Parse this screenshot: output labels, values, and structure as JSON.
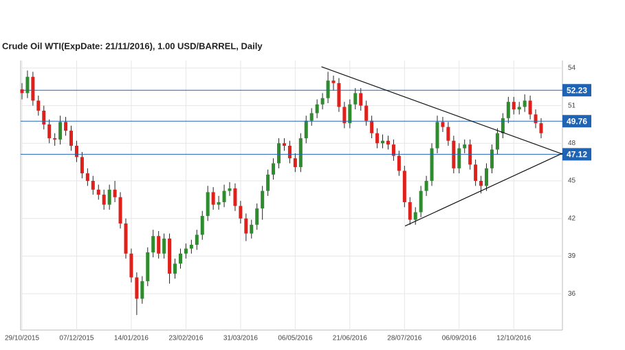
{
  "chart_data": {
    "type": "candlestick",
    "title": "Crude Oil WTI(ExpDate: 21/11/2016), 1.00 USD/BARREL, Daily",
    "categories": [
      "29/10/2015",
      null,
      null,
      null,
      null,
      null,
      null,
      null,
      null,
      null,
      "07/12/2015",
      null,
      null,
      null,
      null,
      null,
      null,
      null,
      null,
      null,
      "14/01/2016",
      null,
      null,
      null,
      null,
      null,
      null,
      null,
      null,
      null,
      "23/02/2016",
      null,
      null,
      null,
      null,
      null,
      null,
      null,
      null,
      null,
      "31/03/2016",
      null,
      null,
      null,
      null,
      null,
      null,
      null,
      null,
      null,
      "06/05/2016",
      null,
      null,
      null,
      null,
      null,
      null,
      null,
      null,
      null,
      "21/06/2016",
      null,
      null,
      null,
      null,
      null,
      null,
      null,
      null,
      null,
      "28/07/2016",
      null,
      null,
      null,
      null,
      null,
      null,
      null,
      null,
      null,
      "06/09/2016",
      null,
      null,
      null,
      null,
      null,
      null,
      null,
      null,
      null,
      "12/10/2016",
      null,
      null,
      null,
      null,
      null
    ],
    "open": [
      52.3,
      52.0,
      53.3,
      51.4,
      50.6,
      49.5,
      48.4,
      48.3,
      49.7,
      49.0,
      47.8,
      46.9,
      45.6,
      45.0,
      44.3,
      43.9,
      43.1,
      44.3,
      43.7,
      41.6,
      39.2,
      37.3,
      35.6,
      37.0,
      39.3,
      40.6,
      39.2,
      40.4,
      37.6,
      38.4,
      39.2,
      39.6,
      39.9,
      40.7,
      42.2,
      44.1,
      43.1,
      43.3,
      44.2,
      44.4,
      43.0,
      42.0,
      40.8,
      41.5,
      42.8,
      44.2,
      45.5,
      46.4,
      48.0,
      47.8,
      46.8,
      46.1,
      48.4,
      49.8,
      50.4,
      51.1,
      51.6,
      53.0,
      52.8,
      50.9,
      49.6,
      51.1,
      52.0,
      51.0,
      49.8,
      48.8,
      48.0,
      48.2,
      47.9,
      47.0,
      45.8,
      43.3,
      41.9,
      42.5,
      44.2,
      45.0,
      47.6,
      49.7,
      49.3,
      48.2,
      46.0,
      47.6,
      47.9,
      46.3,
      45.0,
      44.6,
      46.0,
      47.5,
      48.8,
      50.0,
      51.3,
      50.7,
      50.9,
      51.4,
      50.3,
      49.6
    ],
    "high": [
      52.8,
      53.8,
      53.7,
      51.8,
      51.0,
      49.9,
      48.8,
      50.2,
      50.1,
      49.4,
      48.2,
      47.3,
      46.0,
      45.4,
      44.7,
      44.3,
      44.7,
      45.0,
      44.1,
      42.0,
      39.6,
      37.7,
      37.4,
      39.7,
      41.1,
      41.0,
      40.8,
      40.8,
      38.8,
      39.6,
      40.0,
      40.3,
      41.1,
      42.6,
      44.6,
      44.5,
      43.8,
      44.7,
      44.9,
      44.8,
      43.4,
      42.4,
      41.9,
      43.2,
      44.6,
      45.9,
      46.8,
      48.4,
      48.4,
      48.2,
      47.2,
      48.8,
      50.2,
      50.8,
      51.5,
      52.0,
      53.7,
      53.4,
      53.2,
      51.3,
      51.5,
      52.4,
      52.4,
      51.4,
      50.2,
      49.2,
      48.7,
      48.6,
      48.3,
      47.4,
      46.2,
      43.7,
      42.9,
      44.6,
      45.4,
      48.0,
      50.2,
      50.1,
      49.7,
      48.6,
      48.0,
      48.3,
      48.3,
      46.7,
      45.4,
      46.4,
      47.9,
      49.2,
      50.4,
      51.7,
      51.7,
      51.3,
      51.9,
      51.8,
      50.7,
      50.0
    ],
    "low": [
      51.5,
      51.6,
      51.0,
      50.2,
      49.1,
      48.0,
      47.8,
      47.9,
      48.6,
      47.4,
      46.5,
      45.2,
      44.6,
      43.9,
      43.5,
      42.7,
      42.7,
      43.3,
      41.2,
      38.8,
      36.9,
      34.3,
      35.2,
      36.6,
      38.9,
      38.8,
      38.8,
      36.8,
      37.2,
      38.0,
      38.8,
      39.2,
      39.5,
      40.3,
      41.8,
      42.7,
      42.7,
      42.9,
      43.8,
      42.6,
      41.6,
      40.2,
      40.4,
      41.1,
      41.9,
      43.8,
      45.1,
      46.0,
      47.4,
      46.4,
      45.7,
      45.7,
      48.0,
      49.4,
      50.0,
      50.7,
      51.2,
      52.2,
      50.5,
      49.2,
      49.2,
      50.7,
      50.6,
      49.4,
      48.4,
      47.6,
      47.6,
      47.5,
      46.6,
      45.4,
      42.9,
      41.5,
      41.5,
      42.1,
      43.8,
      44.6,
      47.2,
      48.9,
      47.8,
      45.6,
      45.6,
      47.2,
      45.9,
      44.6,
      44.0,
      44.2,
      45.6,
      47.1,
      48.4,
      49.6,
      50.3,
      50.3,
      50.5,
      49.9,
      49.2,
      48.4
    ],
    "close": [
      52.0,
      53.3,
      51.4,
      50.6,
      49.5,
      48.4,
      48.3,
      49.7,
      49.0,
      47.8,
      46.9,
      45.6,
      45.0,
      44.3,
      43.9,
      43.1,
      44.3,
      43.7,
      41.6,
      39.2,
      37.3,
      35.6,
      37.0,
      39.3,
      40.6,
      39.2,
      40.4,
      37.6,
      38.4,
      39.2,
      39.6,
      39.9,
      40.7,
      42.2,
      44.1,
      43.1,
      43.3,
      44.2,
      44.4,
      43.0,
      42.0,
      40.8,
      41.5,
      42.8,
      44.2,
      45.5,
      46.4,
      48.0,
      47.8,
      46.8,
      46.1,
      48.4,
      49.8,
      50.4,
      51.1,
      51.6,
      53.0,
      52.8,
      50.9,
      49.6,
      51.1,
      52.0,
      51.0,
      49.8,
      48.8,
      48.0,
      48.2,
      47.9,
      47.0,
      45.8,
      43.3,
      41.9,
      42.5,
      44.2,
      45.0,
      47.6,
      49.7,
      49.3,
      48.2,
      46.0,
      47.6,
      47.9,
      46.3,
      45.0,
      44.6,
      46.0,
      47.5,
      48.8,
      50.0,
      51.3,
      50.7,
      50.9,
      51.4,
      50.3,
      49.6,
      48.8
    ],
    "up_color": "#2e8b2e",
    "down_color": "#e0201b",
    "xlim": [
      -0.25,
      98.9
    ],
    "ylim": [
      33.1,
      54.6
    ],
    "yticks": [
      36,
      39,
      42,
      45,
      48,
      51,
      54
    ],
    "grid": true,
    "levels": [
      52.23,
      49.76,
      47.12
    ],
    "level_color": "#1f63b5",
    "trendlines": [
      {
        "x": [
          54.8,
          98.9
        ],
        "y": [
          54.1,
          47.14
        ]
      },
      {
        "x": [
          70.1,
          98.9
        ],
        "y": [
          41.4,
          47.2
        ]
      }
    ]
  }
}
